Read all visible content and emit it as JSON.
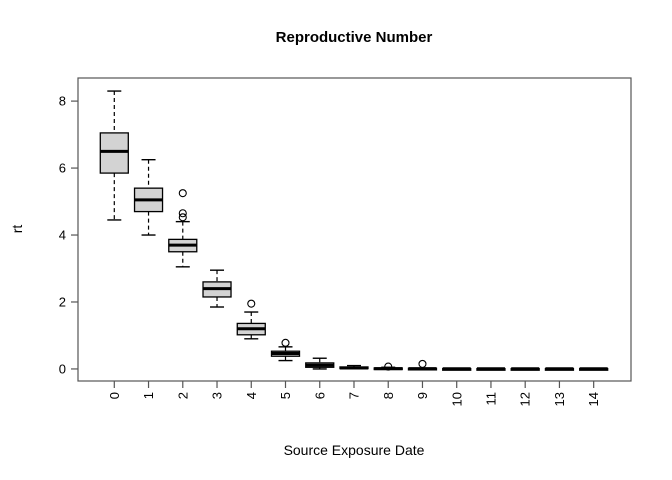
{
  "chart_data": {
    "type": "boxplot",
    "title": "Reproductive Number",
    "xlabel": "Source Exposure Date",
    "ylabel": "rt",
    "legend": null,
    "grid": false,
    "categories": [
      "0",
      "1",
      "2",
      "3",
      "4",
      "5",
      "6",
      "7",
      "8",
      "9",
      "10",
      "11",
      "12",
      "13",
      "14"
    ],
    "yticks": [
      0,
      2,
      4,
      6,
      8
    ],
    "ylim": [
      -0.36,
      8.69
    ],
    "xlim": [
      -1.06,
      15.09
    ],
    "colors": {
      "box_fill": "#d3d3d3",
      "box_stroke": "#000000",
      "median_stroke": "#000000",
      "frame_stroke": "#555555",
      "background": "#ffffff",
      "text": "#000000"
    },
    "boxes": [
      {
        "label": "0",
        "whisker_low": 4.45,
        "q1": 5.85,
        "median": 6.5,
        "q3": 7.05,
        "whisker_high": 8.3,
        "outliers": []
      },
      {
        "label": "1",
        "whisker_low": 4.0,
        "q1": 4.7,
        "median": 5.05,
        "q3": 5.4,
        "whisker_high": 6.25,
        "outliers": []
      },
      {
        "label": "2",
        "whisker_low": 3.05,
        "q1": 3.5,
        "median": 3.7,
        "q3": 3.87,
        "whisker_high": 4.4,
        "outliers": [
          4.53,
          4.65,
          5.25
        ]
      },
      {
        "label": "3",
        "whisker_low": 1.85,
        "q1": 2.15,
        "median": 2.4,
        "q3": 2.6,
        "whisker_high": 2.95,
        "outliers": []
      },
      {
        "label": "4",
        "whisker_low": 0.9,
        "q1": 1.02,
        "median": 1.2,
        "q3": 1.36,
        "whisker_high": 1.7,
        "outliers": [
          1.95
        ]
      },
      {
        "label": "5",
        "whisker_low": 0.25,
        "q1": 0.38,
        "median": 0.46,
        "q3": 0.53,
        "whisker_high": 0.66,
        "outliers": [
          0.78
        ]
      },
      {
        "label": "6",
        "whisker_low": 0.0,
        "q1": 0.05,
        "median": 0.11,
        "q3": 0.18,
        "whisker_high": 0.32,
        "outliers": []
      },
      {
        "label": "7",
        "whisker_low": 0.0,
        "q1": 0.01,
        "median": 0.03,
        "q3": 0.06,
        "whisker_high": 0.1,
        "outliers": []
      },
      {
        "label": "8",
        "whisker_low": 0.0,
        "q1": 0.0,
        "median": 0.01,
        "q3": 0.03,
        "whisker_high": 0.05,
        "outliers": [
          0.07
        ]
      },
      {
        "label": "9",
        "whisker_low": 0.0,
        "q1": 0.0,
        "median": 0.01,
        "q3": 0.02,
        "whisker_high": 0.03,
        "outliers": [
          0.15
        ]
      },
      {
        "label": "10",
        "whisker_low": 0.0,
        "q1": 0.0,
        "median": 0.005,
        "q3": 0.01,
        "whisker_high": 0.01,
        "outliers": []
      },
      {
        "label": "11",
        "whisker_low": 0.0,
        "q1": 0.0,
        "median": 0.005,
        "q3": 0.01,
        "whisker_high": 0.01,
        "outliers": []
      },
      {
        "label": "12",
        "whisker_low": 0.0,
        "q1": 0.0,
        "median": 0.005,
        "q3": 0.01,
        "whisker_high": 0.01,
        "outliers": []
      },
      {
        "label": "13",
        "whisker_low": 0.0,
        "q1": 0.0,
        "median": 0.005,
        "q3": 0.01,
        "whisker_high": 0.01,
        "outliers": []
      },
      {
        "label": "14",
        "whisker_low": 0.0,
        "q1": 0.0,
        "median": 0.005,
        "q3": 0.01,
        "whisker_high": 0.01,
        "outliers": []
      }
    ]
  }
}
